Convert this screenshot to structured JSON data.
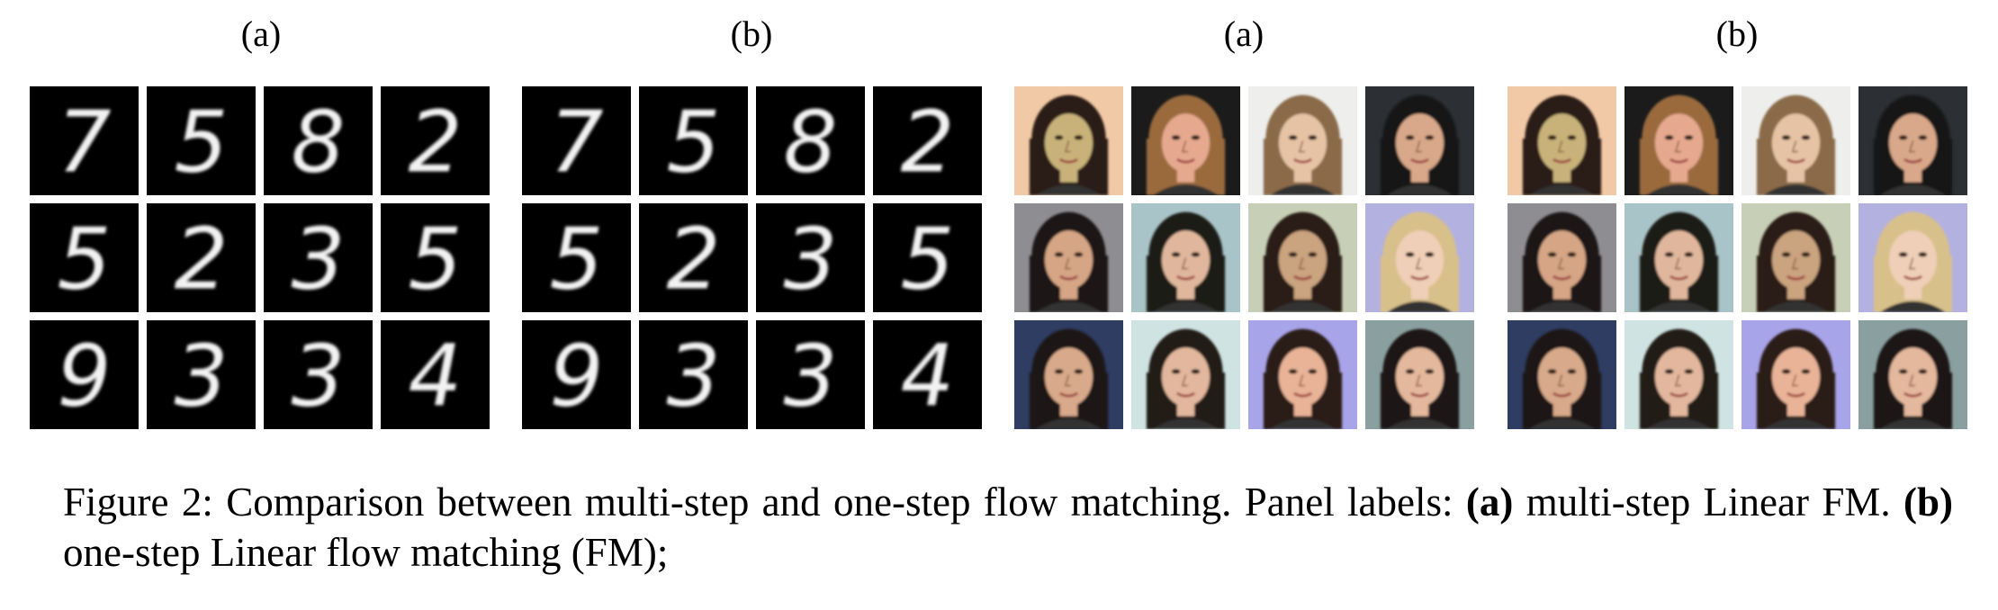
{
  "panels": [
    {
      "label": "(a)",
      "kind": "mnist"
    },
    {
      "label": "(b)",
      "kind": "mnist"
    },
    {
      "label": "(a)",
      "kind": "celeba"
    },
    {
      "label": "(b)",
      "kind": "celeba"
    }
  ],
  "mnist_digits": [
    "7",
    "5",
    "8",
    "2",
    "5",
    "2",
    "3",
    "5",
    "9",
    "3",
    "3",
    "4"
  ],
  "face_backgrounds": [
    "#f1c9a6",
    "#1b1b1b",
    "#eeeeec",
    "#2c2f33",
    "#8e8e92",
    "#a9c4c9",
    "#c7d0b6",
    "#b3b1e0",
    "#2f3d63",
    "#cfe3e3",
    "#a7a4ea",
    "#8aa0a0"
  ],
  "face_skins": [
    "#c8b27a",
    "#e6a98f",
    "#e7c3a6",
    "#d9a88a",
    "#d5a585",
    "#e0b79c",
    "#caa37f",
    "#efcfb7",
    "#d8a98a",
    "#e2b79d",
    "#e9b398",
    "#e4b89d"
  ],
  "face_hair": [
    "#2a1a14",
    "#9a6a3c",
    "#8a6a4a",
    "#181414",
    "#1a1414",
    "#1f1a16",
    "#2a1e16",
    "#d8c08a",
    "#1f1712",
    "#241a14",
    "#2a1c14",
    "#1e1814"
  ],
  "caption": {
    "prefix": "Figure 2: Comparison between multi-step and one-step flow matching. Panel labels: ",
    "a_label": "(a)",
    "a_text": " multi-step Linear FM. ",
    "b_label": "(b)",
    "b_text": " one-step Linear flow matching (FM);"
  }
}
